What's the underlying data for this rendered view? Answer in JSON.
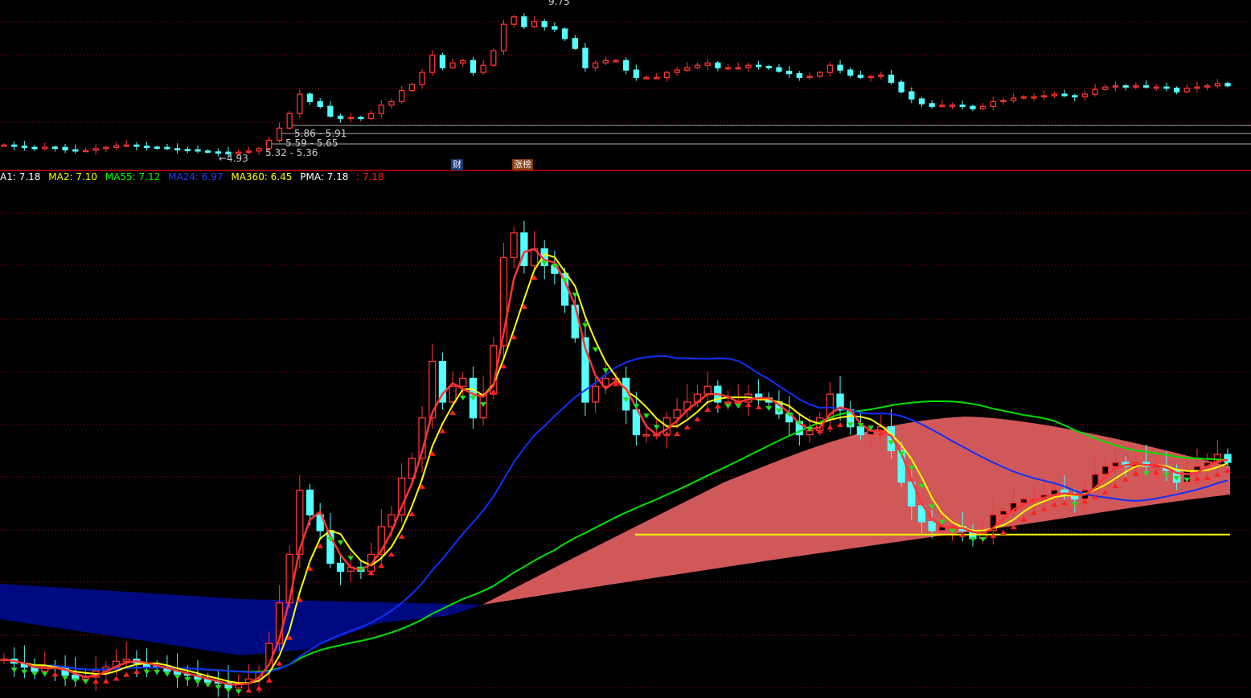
{
  "chart_data": [
    {
      "type": "candlestick",
      "panel": "top",
      "annotations": {
        "high_label": "9.75",
        "low_label": "←4.93",
        "ranges": [
          "5.86 - 5.91",
          "5.59 - 5.65",
          "5.32 - 5.36"
        ]
      },
      "badges": [
        {
          "text": "财",
          "color": "#1a3a7a"
        },
        {
          "text": "涨榜",
          "color": "#8a3a10"
        }
      ],
      "grid": true
    },
    {
      "type": "candlestick",
      "panel": "bottom",
      "legend": [
        {
          "label": "A1: 7.18",
          "color": "#ffffff"
        },
        {
          "label": "MA2: 7.10",
          "color": "#ffff00"
        },
        {
          "label": "MA55: 7.12",
          "color": "#00ff00"
        },
        {
          "label": "MA24: 6.97",
          "color": "#0000ff"
        },
        {
          "label": "MA360: 6.45",
          "color": "#ffff00"
        },
        {
          "label": "PMA: 7.18",
          "color": "#ffffff"
        },
        {
          "label": ": 7.18",
          "color": "#ff2020"
        }
      ],
      "ma360": 6.45,
      "grid": true,
      "closes": [
        5.19,
        5.15,
        5.11,
        5.07,
        5.12,
        5.11,
        5.03,
        4.99,
        5.01,
        5.07,
        5.11,
        5.17,
        5.19,
        5.15,
        5.12,
        5.11,
        5.07,
        5.04,
        5.03,
        4.99,
        4.96,
        4.95,
        4.9,
        4.95,
        4.99,
        5.07,
        5.35,
        5.76,
        6.25,
        6.9,
        6.65,
        6.49,
        6.16,
        6.08,
        6.12,
        6.08,
        6.25,
        6.53,
        6.65,
        7.02,
        7.22,
        7.63,
        8.2,
        7.79,
        7.95,
        8.03,
        7.63,
        7.87,
        8.36,
        9.25,
        9.5,
        9.17,
        9.34,
        9.17,
        9.09,
        8.77,
        8.44,
        7.79,
        7.95,
        8.03,
        8.03,
        7.71,
        7.46,
        7.46,
        7.46,
        7.63,
        7.71,
        7.79,
        7.87,
        7.95,
        7.79,
        7.79,
        7.79,
        7.87,
        7.83,
        7.79,
        7.67,
        7.59,
        7.46,
        7.5,
        7.63,
        7.87,
        7.71,
        7.54,
        7.46,
        7.5,
        7.54,
        7.3,
        6.98,
        6.74,
        6.58,
        6.49,
        6.53,
        6.53,
        6.49,
        6.41,
        6.49,
        6.65,
        6.69,
        6.77,
        6.81,
        6.81,
        6.85,
        6.9,
        6.85,
        6.81,
        6.9,
        7.06,
        7.14,
        7.18,
        7.14,
        7.18,
        7.14,
        7.14,
        7.1,
        6.98,
        7.1,
        7.14,
        7.18,
        7.26,
        7.18
      ],
      "colors": {
        "up": "#ff3333",
        "down": "#54ffff",
        "ma24": "#1030ff",
        "ma55": "#00e000",
        "ma360": "#ffff00",
        "grid": "#c00000"
      }
    }
  ]
}
